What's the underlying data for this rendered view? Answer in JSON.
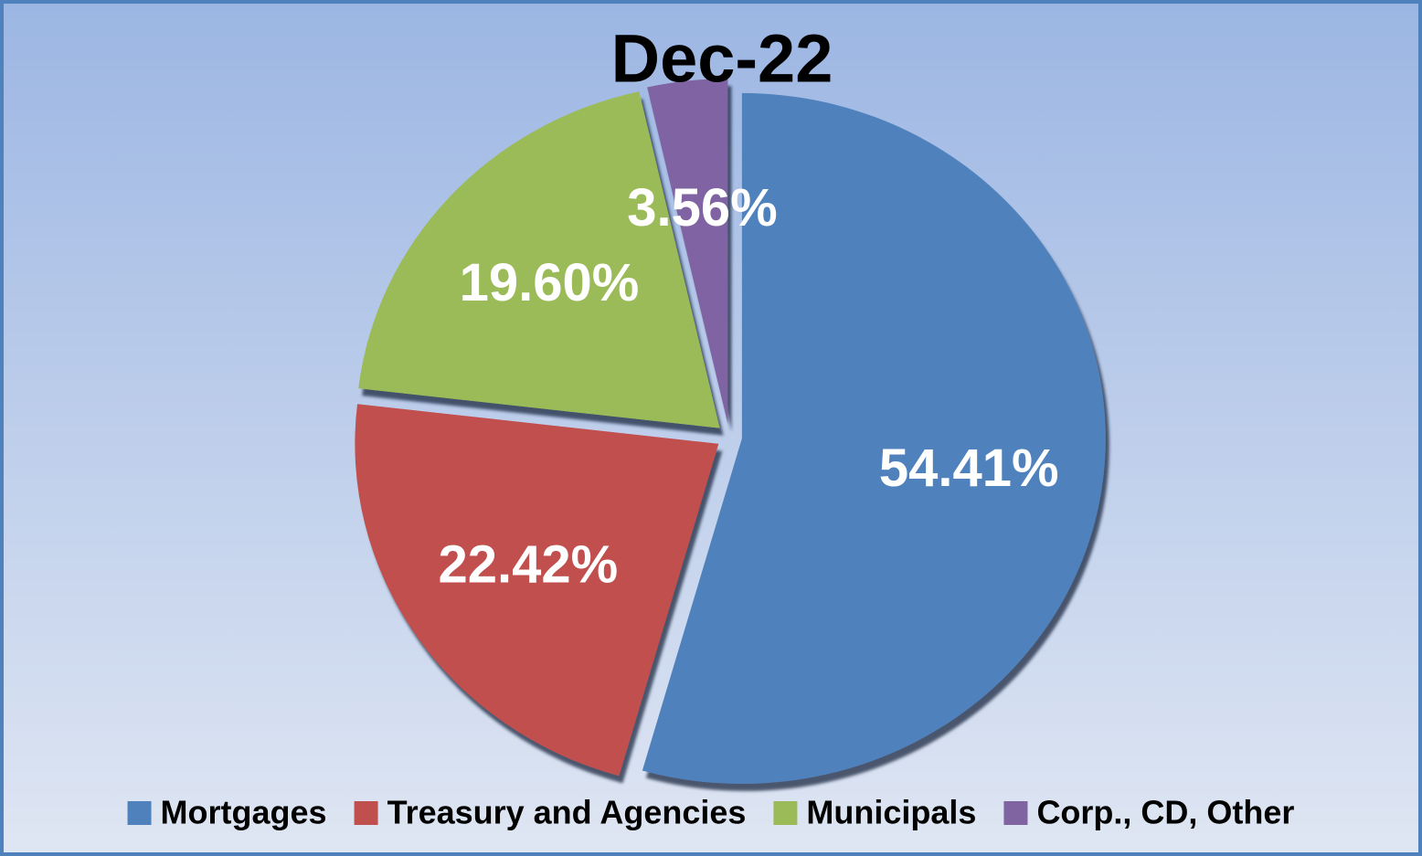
{
  "chart_data": {
    "type": "pie",
    "title": "Dec-22",
    "categories": [
      "Mortgages",
      "Treasury and Agencies",
      "Municipals",
      "Corp., CD, Other"
    ],
    "values": [
      54.41,
      22.42,
      19.6,
      3.56
    ],
    "value_labels": [
      "54.41%",
      "22.42%",
      "19.60%",
      "3.56%"
    ],
    "colors": [
      "#4f81bd",
      "#c0504d",
      "#9bbb59",
      "#8064a2"
    ],
    "legend": "bottom"
  }
}
